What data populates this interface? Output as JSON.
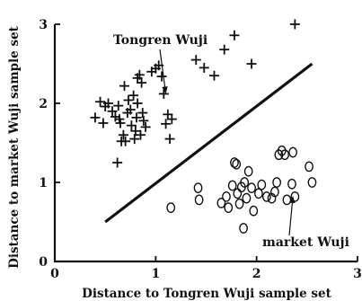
{
  "chart_data": {
    "type": "scatter",
    "xlabel": "Distance to Tongren Wuji sample set",
    "ylabel": "Distance to market Wuji sample set",
    "xlim": [
      0,
      3
    ],
    "ylim": [
      0,
      3
    ],
    "x_ticks": [
      "0",
      "1",
      "2",
      "3"
    ],
    "y_ticks": [
      "0",
      "1",
      "2",
      "3"
    ],
    "grid": false,
    "series": [
      {
        "name": "Tongren Wuji",
        "marker": "plus",
        "points": [
          [
            0.4,
            1.82
          ],
          [
            0.45,
            2.02
          ],
          [
            0.48,
            1.75
          ],
          [
            0.5,
            1.96
          ],
          [
            0.53,
            2.0
          ],
          [
            0.57,
            1.9
          ],
          [
            0.6,
            1.83
          ],
          [
            0.62,
            1.25
          ],
          [
            0.63,
            1.97
          ],
          [
            0.64,
            1.8
          ],
          [
            0.65,
            1.75
          ],
          [
            0.66,
            1.52
          ],
          [
            0.68,
            1.6
          ],
          [
            0.69,
            2.22
          ],
          [
            0.7,
            1.52
          ],
          [
            0.72,
            1.88
          ],
          [
            0.73,
            2.04
          ],
          [
            0.75,
            1.92
          ],
          [
            0.76,
            1.72
          ],
          [
            0.78,
            2.1
          ],
          [
            0.79,
            1.55
          ],
          [
            0.8,
            1.65
          ],
          [
            0.81,
            1.82
          ],
          [
            0.82,
            2.32
          ],
          [
            0.82,
            2.0
          ],
          [
            0.84,
            2.36
          ],
          [
            0.85,
            1.6
          ],
          [
            0.86,
            2.26
          ],
          [
            0.87,
            1.88
          ],
          [
            0.88,
            1.78
          ],
          [
            0.9,
            1.7
          ],
          [
            0.96,
            2.4
          ],
          [
            1.0,
            2.44
          ],
          [
            1.03,
            2.48
          ],
          [
            1.06,
            2.34
          ],
          [
            1.08,
            2.12
          ],
          [
            1.1,
            1.74
          ],
          [
            1.12,
            1.86
          ],
          [
            1.14,
            1.55
          ],
          [
            1.16,
            1.8
          ],
          [
            1.4,
            2.55
          ],
          [
            1.48,
            2.45
          ],
          [
            1.58,
            2.35
          ],
          [
            1.68,
            2.68
          ],
          [
            1.78,
            2.86
          ],
          [
            1.95,
            2.5
          ],
          [
            2.38,
            3.0
          ]
        ]
      },
      {
        "name": "market Wuji",
        "marker": "circle",
        "points": [
          [
            1.15,
            0.68
          ],
          [
            1.42,
            0.93
          ],
          [
            1.43,
            0.78
          ],
          [
            1.65,
            0.74
          ],
          [
            1.7,
            0.82
          ],
          [
            1.72,
            0.68
          ],
          [
            1.76,
            0.96
          ],
          [
            1.78,
            1.25
          ],
          [
            1.8,
            1.23
          ],
          [
            1.81,
            0.86
          ],
          [
            1.83,
            0.73
          ],
          [
            1.85,
            0.94
          ],
          [
            1.87,
            0.42
          ],
          [
            1.88,
            1.0
          ],
          [
            1.9,
            0.8
          ],
          [
            1.92,
            1.14
          ],
          [
            1.95,
            0.93
          ],
          [
            1.97,
            0.64
          ],
          [
            2.02,
            0.86
          ],
          [
            2.05,
            0.97
          ],
          [
            2.1,
            0.82
          ],
          [
            2.15,
            0.8
          ],
          [
            2.18,
            0.88
          ],
          [
            2.2,
            1.0
          ],
          [
            2.22,
            1.35
          ],
          [
            2.25,
            1.4
          ],
          [
            2.28,
            1.35
          ],
          [
            2.3,
            0.78
          ],
          [
            2.35,
            0.98
          ],
          [
            2.38,
            0.82
          ],
          [
            2.36,
            1.38
          ],
          [
            2.52,
            1.2
          ],
          [
            2.55,
            1.0
          ]
        ]
      }
    ],
    "decision_boundary": [
      [
        0.5,
        0.5
      ],
      [
        2.55,
        2.5
      ]
    ],
    "annotations": [
      {
        "text": "Tongren Wuji",
        "arrow_target": [
          1.1,
          2.12
        ]
      },
      {
        "text": "market Wuji",
        "arrow_target": [
          2.36,
          0.83
        ]
      }
    ]
  }
}
